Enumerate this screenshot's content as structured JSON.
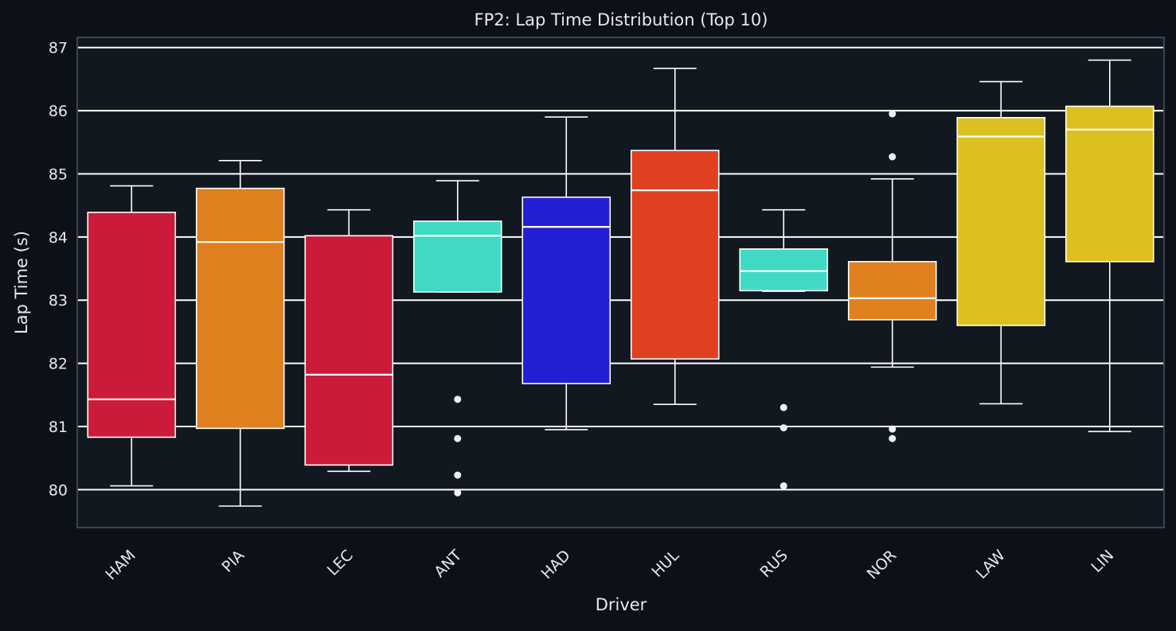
{
  "chart_data": {
    "type": "box",
    "title": "FP2: Lap Time Distribution (Top 10)",
    "xlabel": "Driver",
    "ylabel": "Lap Time (s)",
    "ylim": [
      79.4,
      87.16
    ],
    "yticks": [
      80,
      81,
      82,
      83,
      84,
      85,
      86,
      87
    ],
    "grid": "horizontal",
    "background": "#0c1018",
    "plot_background": "#111820",
    "categories": [
      "HAM",
      "PIA",
      "LEC",
      "ANT",
      "HAD",
      "HUL",
      "RUS",
      "NOR",
      "LAW",
      "LIN"
    ],
    "boxes": [
      {
        "driver": "HAM",
        "color": "#cc1b3a",
        "whislo": 80.06,
        "q1": 80.83,
        "med": 81.43,
        "q3": 84.39,
        "whishi": 84.81,
        "fliers": []
      },
      {
        "driver": "PIA",
        "color": "#e0801f",
        "whislo": 79.74,
        "q1": 80.97,
        "med": 83.92,
        "q3": 84.77,
        "whishi": 85.21,
        "fliers": []
      },
      {
        "driver": "LEC",
        "color": "#cc1b3a",
        "whislo": 80.29,
        "q1": 80.39,
        "med": 81.82,
        "q3": 84.02,
        "whishi": 84.43,
        "fliers": []
      },
      {
        "driver": "ANT",
        "color": "#40dac4",
        "whislo": 83.13,
        "q1": 83.13,
        "med": 84.02,
        "q3": 84.25,
        "whishi": 84.89,
        "fliers": [
          81.43,
          80.81,
          80.23,
          79.95
        ]
      },
      {
        "driver": "HAD",
        "color": "#221fd4",
        "whislo": 80.95,
        "q1": 81.68,
        "med": 84.16,
        "q3": 84.63,
        "whishi": 85.9,
        "fliers": []
      },
      {
        "driver": "HUL",
        "color": "#e04020",
        "whislo": 81.35,
        "q1": 82.07,
        "med": 84.74,
        "q3": 85.37,
        "whishi": 86.67,
        "fliers": []
      },
      {
        "driver": "RUS",
        "color": "#40dac4",
        "whislo": 83.14,
        "q1": 83.15,
        "med": 83.46,
        "q3": 83.81,
        "whishi": 84.43,
        "fliers": [
          81.3,
          80.98,
          80.06
        ]
      },
      {
        "driver": "NOR",
        "color": "#e0801f",
        "whislo": 81.94,
        "q1": 82.69,
        "med": 83.03,
        "q3": 83.61,
        "whishi": 84.92,
        "fliers": [
          85.95,
          85.27,
          80.96,
          80.81
        ]
      },
      {
        "driver": "LAW",
        "color": "#dcc020",
        "whislo": 81.36,
        "q1": 82.6,
        "med": 85.59,
        "q3": 85.89,
        "whishi": 86.46,
        "fliers": []
      },
      {
        "driver": "LIN",
        "color": "#dcc020",
        "whislo": 80.92,
        "q1": 83.61,
        "med": 85.7,
        "q3": 86.07,
        "whishi": 86.8,
        "fliers": []
      }
    ]
  }
}
